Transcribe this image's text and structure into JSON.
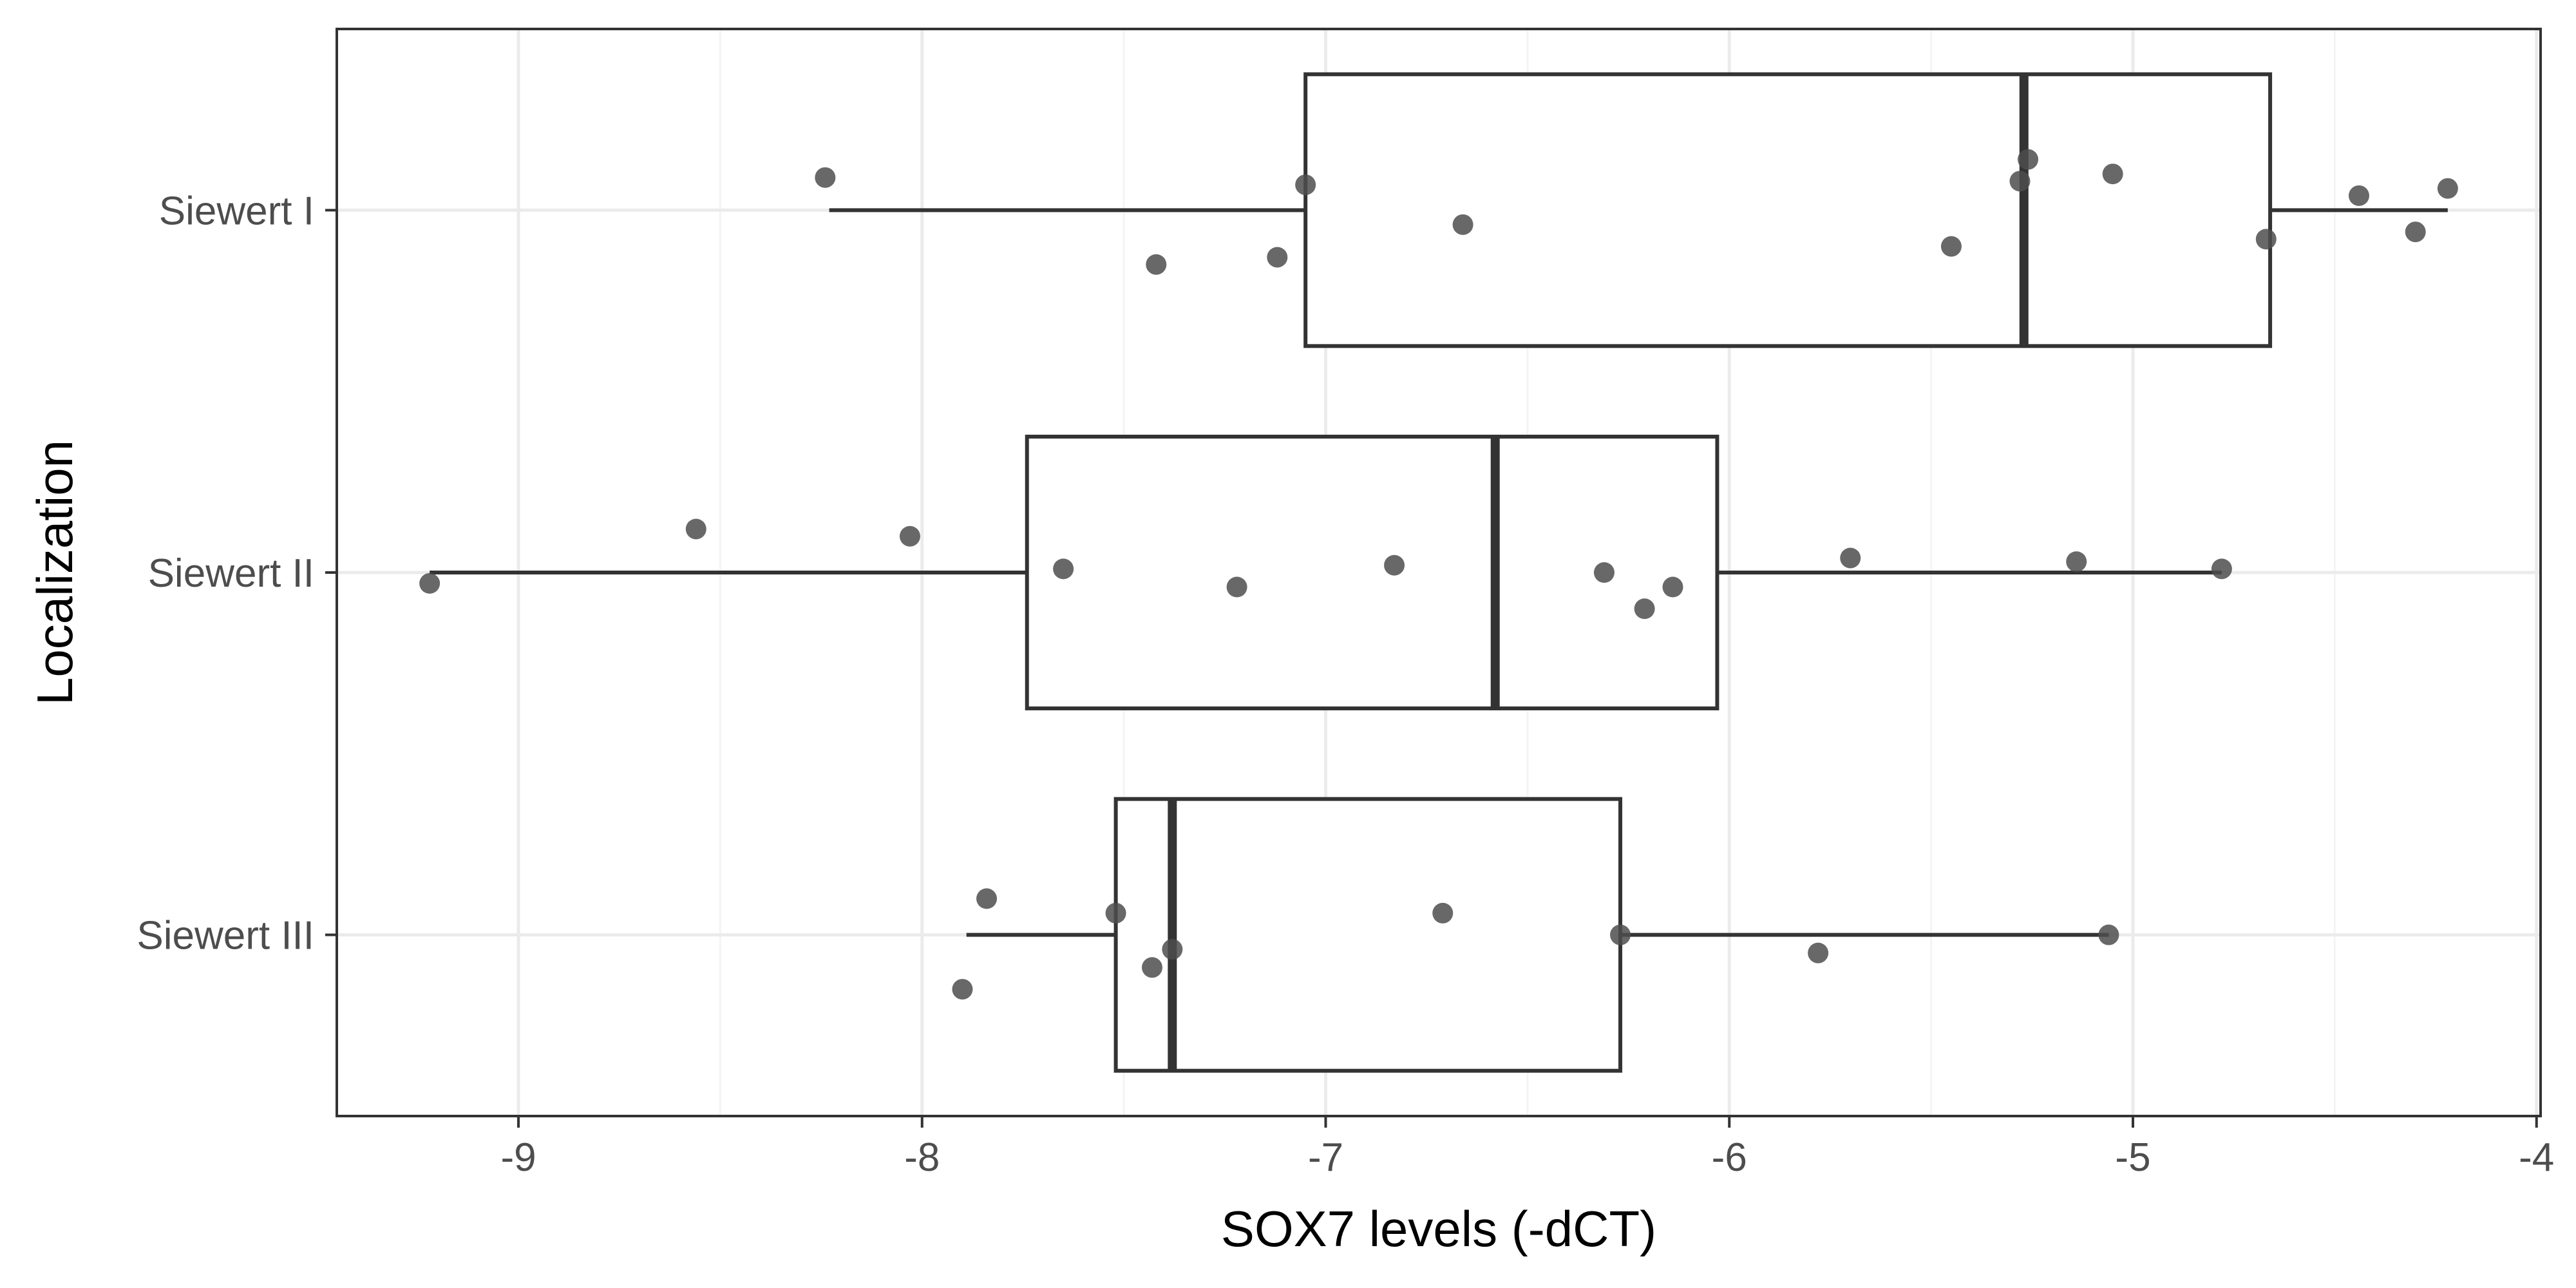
{
  "chart_data": {
    "type": "boxplot",
    "orientation": "horizontal",
    "xlabel": "SOX7 levels (-dCT)",
    "ylabel": "Localization",
    "xlim": [
      -9.45,
      -3.99
    ],
    "xticks": [
      -9,
      -8,
      -7,
      -6,
      -5,
      -4
    ],
    "xtick_labels": [
      "-9",
      "-8",
      "-7",
      "-6",
      "-5",
      "-4"
    ],
    "grid": true,
    "categories": [
      "Siewert I",
      "Siewert II",
      "Siewert III"
    ],
    "boxes": [
      {
        "category": "Siewert I",
        "whisker_low": -8.23,
        "q1": -7.05,
        "median": -5.27,
        "q3": -4.66,
        "whisker_high": -4.22,
        "points": [
          {
            "x": -8.24,
            "jitter": 0.09
          },
          {
            "x": -7.05,
            "jitter": 0.07
          },
          {
            "x": -6.66,
            "jitter": -0.04
          },
          {
            "x": -7.42,
            "jitter": -0.15
          },
          {
            "x": -7.12,
            "jitter": -0.13
          },
          {
            "x": -5.45,
            "jitter": -0.1
          },
          {
            "x": -5.28,
            "jitter": 0.08
          },
          {
            "x": -5.26,
            "jitter": 0.14
          },
          {
            "x": -5.05,
            "jitter": 0.1
          },
          {
            "x": -4.67,
            "jitter": -0.08
          },
          {
            "x": -4.44,
            "jitter": 0.04
          },
          {
            "x": -4.3,
            "jitter": -0.06
          },
          {
            "x": -4.22,
            "jitter": 0.06
          }
        ]
      },
      {
        "category": "Siewert II",
        "whisker_low": -9.22,
        "q1": -7.74,
        "median": -6.58,
        "q3": -6.03,
        "whisker_high": -4.78,
        "points": [
          {
            "x": -9.22,
            "jitter": -0.03
          },
          {
            "x": -8.56,
            "jitter": 0.12
          },
          {
            "x": -8.03,
            "jitter": 0.1
          },
          {
            "x": -7.65,
            "jitter": 0.01
          },
          {
            "x": -7.22,
            "jitter": -0.04
          },
          {
            "x": -6.83,
            "jitter": 0.02
          },
          {
            "x": -6.31,
            "jitter": 0.0
          },
          {
            "x": -6.21,
            "jitter": -0.1
          },
          {
            "x": -6.14,
            "jitter": -0.04
          },
          {
            "x": -5.7,
            "jitter": 0.04
          },
          {
            "x": -5.14,
            "jitter": 0.03
          },
          {
            "x": -4.78,
            "jitter": 0.01
          }
        ]
      },
      {
        "category": "Siewert III",
        "whisker_low": -7.89,
        "q1": -7.52,
        "median": -7.38,
        "q3": -6.27,
        "whisker_high": -5.06,
        "points": [
          {
            "x": -7.9,
            "jitter": -0.15
          },
          {
            "x": -7.84,
            "jitter": 0.1
          },
          {
            "x": -7.52,
            "jitter": 0.06
          },
          {
            "x": -7.43,
            "jitter": -0.09
          },
          {
            "x": -7.38,
            "jitter": -0.04
          },
          {
            "x": -6.71,
            "jitter": 0.06
          },
          {
            "x": -6.27,
            "jitter": 0.0
          },
          {
            "x": -5.78,
            "jitter": -0.05
          },
          {
            "x": -5.06,
            "jitter": 0.0
          }
        ]
      }
    ],
    "colors": {
      "box_stroke": "#333333",
      "box_fill": "#ffffff",
      "point_fill": "#4d4d4d",
      "grid_major": "#ebebeb",
      "grid_minor": "#f4f4f4",
      "panel_border": "#333333",
      "axis_text": "#4d4d4d",
      "axis_title": "#000000"
    }
  }
}
